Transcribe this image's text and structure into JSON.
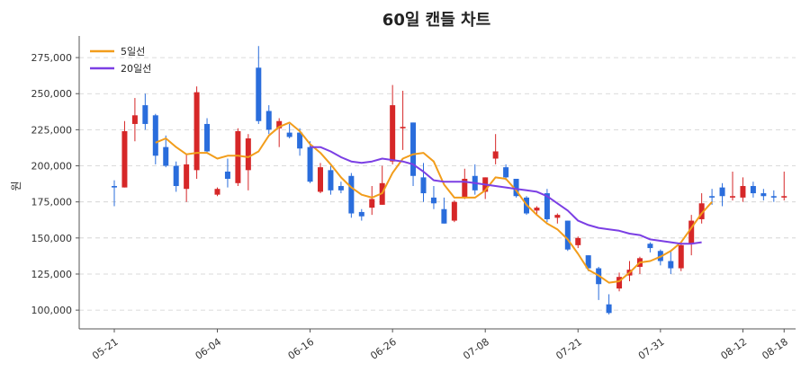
{
  "chart_data": {
    "type": "candlestick",
    "title": "60일 캔들 차트",
    "ylabel": "원",
    "xlabel": "",
    "ylim": [
      87000,
      290000
    ],
    "grid": "horizontal-dashed",
    "legend_position": "top-left",
    "up_color": "#d62728",
    "down_color": "#2a6ddc",
    "x_tick_labels": [
      "05-21",
      "06-04",
      "06-16",
      "06-26",
      "07-08",
      "07-21",
      "07-31",
      "08-12",
      "08-18"
    ],
    "x_tick_indices": [
      0,
      10,
      19,
      27,
      36,
      45,
      53,
      61,
      65
    ],
    "y_ticks": [
      100000,
      125000,
      150000,
      175000,
      200000,
      225000,
      250000,
      275000
    ],
    "y_tick_labels": [
      "100,000",
      "125,000",
      "150,000",
      "175,000",
      "200,000",
      "225,000",
      "250,000",
      "275,000"
    ],
    "candles": [
      {
        "date": "05-21",
        "o": 186000,
        "h": 190000,
        "l": 172000,
        "c": 185000
      },
      {
        "date": "",
        "o": 185000,
        "h": 231000,
        "l": 185000,
        "c": 224000
      },
      {
        "date": "",
        "o": 229000,
        "h": 247000,
        "l": 217000,
        "c": 235000
      },
      {
        "date": "",
        "o": 242000,
        "h": 250000,
        "l": 225000,
        "c": 229000
      },
      {
        "date": "",
        "o": 235000,
        "h": 236000,
        "l": 201000,
        "c": 207000
      },
      {
        "date": "",
        "o": 213000,
        "h": 221000,
        "l": 199000,
        "c": 200000
      },
      {
        "date": "",
        "o": 200000,
        "h": 203000,
        "l": 182000,
        "c": 186000
      },
      {
        "date": "",
        "o": 184000,
        "h": 208000,
        "l": 175000,
        "c": 201000
      },
      {
        "date": "",
        "o": 197000,
        "h": 255000,
        "l": 191000,
        "c": 251000
      },
      {
        "date": "",
        "o": 229000,
        "h": 233000,
        "l": 209000,
        "c": 210000
      },
      {
        "date": "06-04",
        "o": 180000,
        "h": 185000,
        "l": 179000,
        "c": 184000
      },
      {
        "date": "",
        "o": 196000,
        "h": 205000,
        "l": 185000,
        "c": 191000
      },
      {
        "date": "",
        "o": 188000,
        "h": 226000,
        "l": 186000,
        "c": 224000
      },
      {
        "date": "",
        "o": 197000,
        "h": 222000,
        "l": 183000,
        "c": 219000
      },
      {
        "date": "",
        "o": 268000,
        "h": 283000,
        "l": 229000,
        "c": 231000
      },
      {
        "date": "",
        "o": 238000,
        "h": 242000,
        "l": 222000,
        "c": 225000
      },
      {
        "date": "",
        "o": 226000,
        "h": 233000,
        "l": 213000,
        "c": 231000
      },
      {
        "date": "",
        "o": 223000,
        "h": 229000,
        "l": 219000,
        "c": 220000
      },
      {
        "date": "",
        "o": 223000,
        "h": 226000,
        "l": 207000,
        "c": 212000
      },
      {
        "date": "06-16",
        "o": 213000,
        "h": 217000,
        "l": 188000,
        "c": 189000
      },
      {
        "date": "",
        "o": 182000,
        "h": 202000,
        "l": 181000,
        "c": 199000
      },
      {
        "date": "",
        "o": 197000,
        "h": 200000,
        "l": 180000,
        "c": 183000
      },
      {
        "date": "",
        "o": 186000,
        "h": 189000,
        "l": 181000,
        "c": 183000
      },
      {
        "date": "",
        "o": 193000,
        "h": 195000,
        "l": 164000,
        "c": 167000
      },
      {
        "date": "",
        "o": 168000,
        "h": 170000,
        "l": 162000,
        "c": 165000
      },
      {
        "date": "",
        "o": 171000,
        "h": 186000,
        "l": 166000,
        "c": 177000
      },
      {
        "date": "",
        "o": 173000,
        "h": 200000,
        "l": 173000,
        "c": 188000
      },
      {
        "date": "06-26",
        "o": 203000,
        "h": 256000,
        "l": 201000,
        "c": 242000
      },
      {
        "date": "",
        "o": 226000,
        "h": 252000,
        "l": 211000,
        "c": 227000
      },
      {
        "date": "",
        "o": 230000,
        "h": 230000,
        "l": 186000,
        "c": 193000
      },
      {
        "date": "",
        "o": 192000,
        "h": 202000,
        "l": 175000,
        "c": 181000
      },
      {
        "date": "",
        "o": 178000,
        "h": 186000,
        "l": 170000,
        "c": 174000
      },
      {
        "date": "",
        "o": 170000,
        "h": 178000,
        "l": 160000,
        "c": 160000
      },
      {
        "date": "",
        "o": 162000,
        "h": 176000,
        "l": 161000,
        "c": 175000
      },
      {
        "date": "",
        "o": 178000,
        "h": 198000,
        "l": 177000,
        "c": 191000
      },
      {
        "date": "",
        "o": 193000,
        "h": 201000,
        "l": 180000,
        "c": 183000
      },
      {
        "date": "07-08",
        "o": 182000,
        "h": 192000,
        "l": 177000,
        "c": 192000
      },
      {
        "date": "",
        "o": 205000,
        "h": 222000,
        "l": 201000,
        "c": 210000
      },
      {
        "date": "",
        "o": 199000,
        "h": 201000,
        "l": 190000,
        "c": 192000
      },
      {
        "date": "",
        "o": 191000,
        "h": 191000,
        "l": 178000,
        "c": 179000
      },
      {
        "date": "",
        "o": 178000,
        "h": 179000,
        "l": 166000,
        "c": 167000
      },
      {
        "date": "",
        "o": 169000,
        "h": 172000,
        "l": 166000,
        "c": 171000
      },
      {
        "date": "",
        "o": 181000,
        "h": 184000,
        "l": 161000,
        "c": 163000
      },
      {
        "date": "",
        "o": 164000,
        "h": 167000,
        "l": 160000,
        "c": 166000
      },
      {
        "date": "",
        "o": 162000,
        "h": 162000,
        "l": 141000,
        "c": 142000
      },
      {
        "date": "07-21",
        "o": 145000,
        "h": 151000,
        "l": 143000,
        "c": 150000
      },
      {
        "date": "",
        "o": 138000,
        "h": 138000,
        "l": 127000,
        "c": 129000
      },
      {
        "date": "",
        "o": 129000,
        "h": 130000,
        "l": 107000,
        "c": 118000
      },
      {
        "date": "",
        "o": 104000,
        "h": 111000,
        "l": 97000,
        "c": 98000
      },
      {
        "date": "",
        "o": 115000,
        "h": 126000,
        "l": 113000,
        "c": 123000
      },
      {
        "date": "",
        "o": 124000,
        "h": 134000,
        "l": 120000,
        "c": 128000
      },
      {
        "date": "",
        "o": 130000,
        "h": 137000,
        "l": 125000,
        "c": 136000
      },
      {
        "date": "",
        "o": 146000,
        "h": 147000,
        "l": 140000,
        "c": 143000
      },
      {
        "date": "07-31",
        "o": 141000,
        "h": 142000,
        "l": 131000,
        "c": 134000
      },
      {
        "date": "",
        "o": 134000,
        "h": 141000,
        "l": 125000,
        "c": 129000
      },
      {
        "date": "",
        "o": 129000,
        "h": 146000,
        "l": 127000,
        "c": 145000
      },
      {
        "date": "",
        "o": 146000,
        "h": 166000,
        "l": 138000,
        "c": 162000
      },
      {
        "date": "",
        "o": 163000,
        "h": 181000,
        "l": 160000,
        "c": 174000
      },
      {
        "date": "",
        "o": 179000,
        "h": 184000,
        "l": 173000,
        "c": 178000
      },
      {
        "date": "",
        "o": 185000,
        "h": 188000,
        "l": 172000,
        "c": 179000
      },
      {
        "date": "",
        "o": 178000,
        "h": 196000,
        "l": 176000,
        "c": 179000
      },
      {
        "date": "08-12",
        "o": 178000,
        "h": 192000,
        "l": 175000,
        "c": 186000
      },
      {
        "date": "",
        "o": 186000,
        "h": 189000,
        "l": 178000,
        "c": 181000
      },
      {
        "date": "",
        "o": 181000,
        "h": 184000,
        "l": 176000,
        "c": 179000
      },
      {
        "date": "",
        "o": 179000,
        "h": 183000,
        "l": 175000,
        "c": 178000
      },
      {
        "date": "08-18",
        "o": 178000,
        "h": 196000,
        "l": 176000,
        "c": 179000
      }
    ],
    "series": [
      {
        "name": "5일선",
        "color": "#f29d1b",
        "values": [
          null,
          null,
          null,
          null,
          216000,
          219000,
          213000,
          208000,
          209000,
          209000,
          205000,
          207000,
          207000,
          206000,
          210000,
          221000,
          227000,
          230000,
          224000,
          215000,
          209000,
          201000,
          192000,
          185000,
          180000,
          178000,
          181000,
          195000,
          205000,
          208000,
          209000,
          203000,
          187000,
          178000,
          178000,
          178000,
          183000,
          192000,
          191000,
          183000,
          173000,
          166000,
          160000,
          156000,
          149000,
          139000,
          128000,
          124000,
          119000,
          120000,
          126000,
          133000,
          134000,
          137000,
          141000,
          147000,
          157000,
          167000,
          175000,
          null,
          null,
          null,
          null,
          null,
          null,
          null
        ]
      },
      {
        "name": "20일선",
        "color": "#7b3fe4",
        "values": [
          null,
          null,
          null,
          null,
          null,
          null,
          null,
          null,
          null,
          null,
          null,
          null,
          null,
          null,
          null,
          null,
          null,
          null,
          null,
          213000,
          213000,
          210000,
          206000,
          203000,
          202000,
          203000,
          205000,
          204000,
          203000,
          201000,
          196000,
          190000,
          189000,
          189000,
          189000,
          188000,
          187000,
          186000,
          185000,
          184000,
          183000,
          182000,
          179000,
          174000,
          169000,
          162000,
          159000,
          157000,
          156000,
          155000,
          153000,
          152000,
          149000,
          148000,
          147000,
          146000,
          146000,
          147000,
          null,
          null,
          null,
          null,
          null,
          null,
          null,
          null
        ]
      }
    ]
  }
}
